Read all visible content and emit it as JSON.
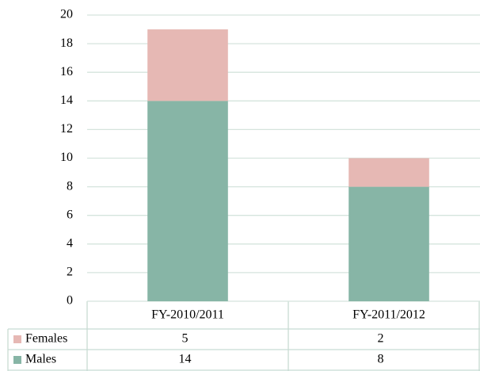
{
  "chart_data": {
    "type": "bar",
    "stacked": true,
    "categories": [
      "FY-2010/2011",
      "FY-2011/2012"
    ],
    "series": [
      {
        "name": "Males",
        "color": "#87b5a6",
        "values": [
          14,
          8
        ]
      },
      {
        "name": "Females",
        "color": "#e6b8b4",
        "values": [
          5,
          2
        ]
      }
    ],
    "ylim": [
      0,
      20
    ],
    "yticks": [
      0,
      2,
      4,
      6,
      8,
      10,
      12,
      14,
      16,
      18,
      20
    ],
    "grid": true
  }
}
